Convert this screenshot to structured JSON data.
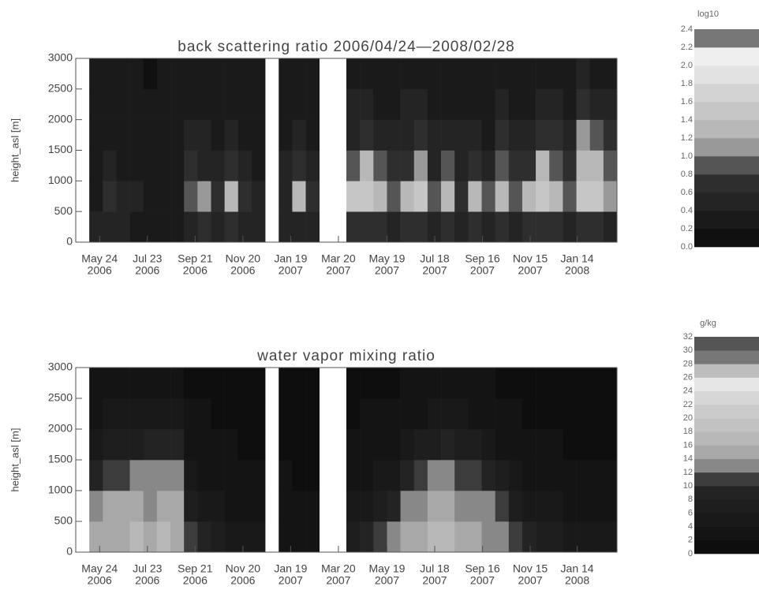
{
  "chart_data": [
    {
      "type": "heatmap",
      "title": "back scattering ratio 2006/04/24—2008/02/28",
      "y_label": "height_asl [m]",
      "xlim": [
        0,
        680
      ],
      "ylim": [
        0,
        3000
      ],
      "xticks": [
        {
          "value": 30,
          "label": "May 24"
        },
        {
          "value": 90,
          "label": "Jul 23"
        },
        {
          "value": 150,
          "label": "Sep 21"
        },
        {
          "value": 210,
          "label": "Nov 20"
        },
        {
          "value": 270,
          "label": "Jan 19"
        },
        {
          "value": 330,
          "label": "Mar 20"
        },
        {
          "value": 391,
          "label": "May 19"
        },
        {
          "value": 451,
          "label": "Jul 18"
        },
        {
          "value": 511,
          "label": "Sep 16"
        },
        {
          "value": 571,
          "label": "Nov 15"
        },
        {
          "value": 630,
          "label": "Jan 14"
        }
      ],
      "xtick_years": [
        "2006",
        "2006",
        "2006",
        "2006",
        "2007",
        "2007",
        "2007",
        "2007",
        "2007",
        "2007",
        "2008"
      ],
      "yticks": [
        0,
        500,
        1000,
        1500,
        2000,
        2500,
        3000
      ],
      "x_bins": [
        0,
        17,
        34,
        51,
        68,
        85,
        102,
        119,
        136,
        153,
        170,
        187,
        204,
        221,
        238,
        255,
        272,
        289,
        306,
        323,
        340,
        357,
        374,
        391,
        408,
        425,
        442,
        459,
        476,
        493,
        510,
        527,
        544,
        561,
        578,
        595,
        612,
        629,
        646,
        663,
        680
      ],
      "y_bins": [
        0,
        500,
        1000,
        1500,
        2000,
        2500,
        3000
      ],
      "z": [
        [
          null,
          null,
          null,
          null,
          null,
          null
        ],
        [
          0.4,
          0.3,
          0.2,
          0.3,
          0.2,
          0.3
        ],
        [
          0.5,
          0.6,
          0.4,
          0.3,
          0.3,
          0.2
        ],
        [
          0.4,
          0.5,
          0.3,
          0.2,
          0.3,
          0.2
        ],
        [
          0.3,
          0.4,
          0.3,
          0.3,
          0.2,
          0.2
        ],
        [
          0.3,
          0.3,
          0.2,
          0.2,
          0.2,
          0.1
        ],
        [
          0.2,
          0.3,
          0.2,
          0.3,
          0.2,
          0.2
        ],
        [
          0.3,
          0.3,
          0.3,
          0.2,
          0.2,
          0.2
        ],
        [
          0.5,
          0.9,
          0.6,
          0.4,
          0.3,
          0.3
        ],
        [
          0.6,
          1.1,
          0.5,
          0.4,
          0.3,
          0.2
        ],
        [
          0.5,
          0.7,
          0.4,
          0.3,
          0.3,
          0.3
        ],
        [
          0.6,
          1.2,
          0.7,
          0.5,
          0.3,
          0.2
        ],
        [
          0.5,
          0.6,
          0.4,
          0.3,
          0.3,
          0.2
        ],
        [
          0.4,
          0.5,
          0.3,
          0.3,
          0.2,
          0.2
        ],
        [
          null,
          null,
          null,
          null,
          null,
          null
        ],
        [
          0.4,
          0.5,
          0.4,
          0.3,
          0.2,
          0.2
        ],
        [
          0.5,
          1.3,
          0.6,
          0.4,
          0.3,
          0.2
        ],
        [
          0.4,
          0.6,
          0.4,
          0.3,
          0.3,
          0.2
        ],
        [
          null,
          null,
          null,
          null,
          null,
          null
        ],
        [
          null,
          null,
          null,
          null,
          null,
          null
        ],
        [
          0.6,
          1.4,
          0.8,
          0.5,
          0.4,
          0.3
        ],
        [
          0.7,
          1.5,
          1.2,
          0.6,
          0.4,
          0.3
        ],
        [
          0.6,
          1.3,
          0.9,
          0.5,
          0.3,
          0.3
        ],
        [
          0.5,
          0.8,
          0.6,
          0.4,
          0.3,
          0.2
        ],
        [
          0.6,
          1.2,
          0.7,
          0.5,
          0.4,
          0.3
        ],
        [
          0.7,
          1.4,
          1.1,
          0.6,
          0.4,
          0.3
        ],
        [
          0.5,
          0.9,
          0.5,
          0.4,
          0.3,
          0.2
        ],
        [
          0.6,
          1.3,
          0.8,
          0.5,
          0.3,
          0.2
        ],
        [
          0.5,
          0.7,
          0.5,
          0.4,
          0.3,
          0.3
        ],
        [
          0.6,
          1.2,
          0.6,
          0.4,
          0.3,
          0.2
        ],
        [
          0.5,
          0.8,
          0.5,
          0.3,
          0.3,
          0.2
        ],
        [
          0.6,
          1.3,
          0.9,
          0.6,
          0.4,
          0.3
        ],
        [
          0.5,
          0.9,
          0.6,
          0.4,
          0.3,
          0.2
        ],
        [
          0.6,
          1.2,
          0.7,
          0.5,
          0.3,
          0.3
        ],
        [
          0.7,
          1.4,
          1.2,
          0.7,
          0.5,
          0.3
        ],
        [
          0.6,
          1.3,
          0.8,
          0.6,
          0.4,
          0.3
        ],
        [
          0.5,
          0.9,
          0.6,
          0.4,
          0.3,
          0.2
        ],
        [
          0.6,
          1.5,
          1.3,
          1.1,
          0.6,
          0.4
        ],
        [
          0.6,
          1.4,
          1.2,
          0.9,
          0.5,
          0.3
        ],
        [
          0.5,
          1.1,
          0.8,
          0.6,
          0.4,
          0.3
        ]
      ],
      "colorbar": {
        "title": "log10",
        "ticks": [
          {
            "value": 0,
            "label": "0.0"
          },
          0.2,
          0.4,
          0.6,
          0.8,
          {
            "value": 1,
            "label": "1.0"
          },
          1.2,
          1.4,
          1.6,
          1.8,
          {
            "value": 2,
            "label": "2.0"
          },
          2.2,
          2.4
        ],
        "colors": [
          "#101010",
          "#1a1a1a",
          "#242424",
          "#2e2e2e",
          "#555555",
          "#999999",
          "#b8b8b8",
          "#c6c6c6",
          "#d3d3d3",
          "#e2e2e2",
          "#efefef",
          "#777777"
        ]
      }
    },
    {
      "type": "heatmap",
      "title": "water vapor mixing ratio",
      "y_label": "height_asl [m]",
      "xlim": [
        0,
        680
      ],
      "ylim": [
        0,
        3000
      ],
      "xticks": [
        {
          "value": 30,
          "label": "May 24"
        },
        {
          "value": 90,
          "label": "Jul 23"
        },
        {
          "value": 150,
          "label": "Sep 21"
        },
        {
          "value": 210,
          "label": "Nov 20"
        },
        {
          "value": 270,
          "label": "Jan 19"
        },
        {
          "value": 330,
          "label": "Mar 20"
        },
        {
          "value": 391,
          "label": "May 19"
        },
        {
          "value": 451,
          "label": "Jul 18"
        },
        {
          "value": 511,
          "label": "Sep 16"
        },
        {
          "value": 571,
          "label": "Nov 15"
        },
        {
          "value": 630,
          "label": "Jan 14"
        }
      ],
      "xtick_years": [
        "2006",
        "2006",
        "2006",
        "2006",
        "2007",
        "2007",
        "2007",
        "2007",
        "2007",
        "2007",
        "2008"
      ],
      "yticks": [
        0,
        500,
        1000,
        1500,
        2000,
        2500,
        3000
      ],
      "x_bins": [
        0,
        17,
        34,
        51,
        68,
        85,
        102,
        119,
        136,
        153,
        170,
        187,
        204,
        221,
        238,
        255,
        272,
        289,
        306,
        323,
        340,
        357,
        374,
        391,
        408,
        425,
        442,
        459,
        476,
        493,
        510,
        527,
        544,
        561,
        578,
        595,
        612,
        629,
        646,
        663,
        680
      ],
      "y_bins": [
        0,
        500,
        1000,
        1500,
        2000,
        2500,
        3000
      ],
      "z": [
        [
          null,
          null,
          null,
          null,
          null,
          null
        ],
        [
          14,
          13,
          8,
          5,
          3,
          2
        ],
        [
          15,
          14,
          10,
          6,
          4,
          2
        ],
        [
          15,
          14,
          11,
          6,
          4,
          3
        ],
        [
          16,
          14,
          12,
          7,
          4,
          3
        ],
        [
          15,
          13,
          12,
          8,
          5,
          3
        ],
        [
          16,
          15,
          13,
          9,
          5,
          3
        ],
        [
          15,
          14,
          12,
          8,
          5,
          3
        ],
        [
          10,
          6,
          4,
          3,
          2,
          1
        ],
        [
          8,
          5,
          3,
          2,
          2,
          1
        ],
        [
          6,
          4,
          3,
          2,
          1,
          1
        ],
        [
          5,
          3,
          2,
          2,
          1,
          1
        ],
        [
          4,
          3,
          2,
          1,
          1,
          1
        ],
        [
          4,
          3,
          2,
          1,
          1,
          1
        ],
        [
          null,
          null,
          null,
          null,
          null,
          null
        ],
        [
          3,
          2,
          2,
          1,
          1,
          1
        ],
        [
          3,
          2,
          1,
          1,
          1,
          1
        ],
        [
          3,
          2,
          1,
          1,
          1,
          1
        ],
        [
          null,
          null,
          null,
          null,
          null,
          null
        ],
        [
          null,
          null,
          null,
          null,
          null,
          null
        ],
        [
          6,
          4,
          3,
          2,
          1,
          1
        ],
        [
          8,
          5,
          3,
          2,
          2,
          1
        ],
        [
          10,
          7,
          4,
          3,
          2,
          1
        ],
        [
          12,
          9,
          5,
          3,
          2,
          1
        ],
        [
          14,
          12,
          8,
          4,
          3,
          2
        ],
        [
          15,
          13,
          10,
          6,
          3,
          2
        ],
        [
          16,
          14,
          12,
          7,
          4,
          2
        ],
        [
          16,
          15,
          12,
          8,
          5,
          3
        ],
        [
          15,
          13,
          11,
          7,
          4,
          2
        ],
        [
          14,
          13,
          10,
          6,
          3,
          2
        ],
        [
          13,
          12,
          8,
          4,
          2,
          2
        ],
        [
          12,
          10,
          6,
          3,
          2,
          1
        ],
        [
          10,
          7,
          4,
          3,
          2,
          1
        ],
        [
          8,
          5,
          3,
          2,
          1,
          1
        ],
        [
          7,
          4,
          3,
          2,
          1,
          1
        ],
        [
          6,
          4,
          2,
          2,
          1,
          1
        ],
        [
          5,
          3,
          2,
          1,
          1,
          1
        ],
        [
          5,
          3,
          2,
          1,
          1,
          1
        ],
        [
          4,
          3,
          2,
          1,
          1,
          1
        ],
        [
          4,
          3,
          2,
          1,
          1,
          1
        ]
      ],
      "colorbar": {
        "title": "g/kg",
        "ticks": [
          0,
          2,
          4,
          6,
          8,
          10,
          12,
          14,
          16,
          18,
          20,
          22,
          24,
          26,
          28,
          30,
          32
        ],
        "colors": [
          "#0e0e0e",
          "#141414",
          "#191919",
          "#1e1e1e",
          "#232323",
          "#3c3c3c",
          "#888888",
          "#a8a8a8",
          "#b8b8b8",
          "#c2c2c2",
          "#cbcbcb",
          "#d6d6d6",
          "#e6e6e6",
          "#bdbdbd",
          "#777777",
          "#555555"
        ]
      }
    }
  ]
}
